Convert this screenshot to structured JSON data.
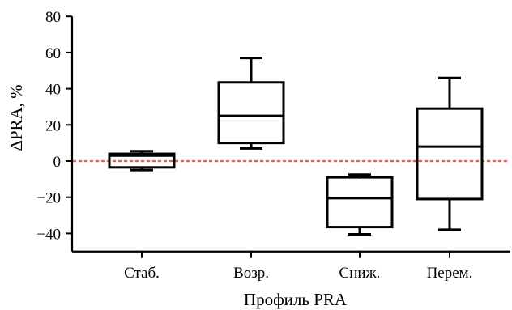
{
  "chart_data": {
    "type": "box",
    "xlabel": "Профиль PRA",
    "ylabel": "ΔPRA, %",
    "ylim": [
      -50,
      80
    ],
    "yticks": [
      -40,
      -20,
      0,
      20,
      40,
      60,
      80
    ],
    "ytick_labels": [
      "−40",
      "−20",
      "0",
      "20",
      "40",
      "60",
      "80"
    ],
    "categories": [
      "Стаб.",
      "Возр.",
      "Сниж.",
      "Перем."
    ],
    "boxes": [
      {
        "category": "Стаб.",
        "whisker_low": -5,
        "q1": -3.5,
        "median": 3,
        "q3": 4,
        "whisker_high": 5.5
      },
      {
        "category": "Возр.",
        "whisker_low": 7,
        "q1": 10,
        "median": 25,
        "q3": 43.5,
        "whisker_high": 57
      },
      {
        "category": "Сниж.",
        "whisker_low": -40.5,
        "q1": -36.5,
        "median": -20.5,
        "q3": -9,
        "whisker_high": -7.5
      },
      {
        "category": "Перем.",
        "whisker_low": -38,
        "q1": -21,
        "median": 8,
        "q3": 29,
        "whisker_high": 46
      }
    ],
    "reference_line": {
      "y": 0,
      "style": "dotted",
      "color": "#e8604c"
    }
  }
}
